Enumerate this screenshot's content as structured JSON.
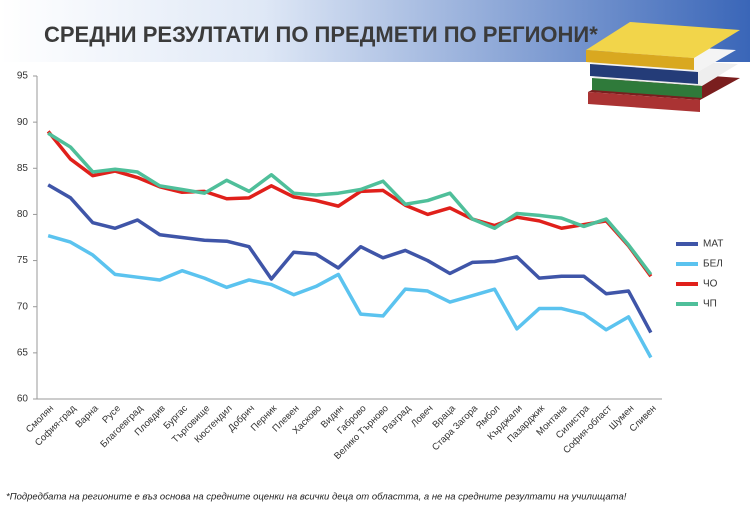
{
  "chart_data": {
    "type": "line",
    "title": "СРЕДНИ РЕЗУЛТАТИ ПО ПРЕДМЕТИ ПО РЕГИОНИ*",
    "footnote": "*Подредбата на регионите е въз основа на средните оценки на всички деца от областта, а не на средните резултати на училищата!",
    "categories": [
      "Смолян",
      "София-град",
      "Варна",
      "Русе",
      "Благоевград",
      "Пловдив",
      "Бургас",
      "Търговище",
      "Кюстендил",
      "Добрич",
      "Перник",
      "Плевен",
      "Хасково",
      "Видин",
      "Габрово",
      "Велико Търново",
      "Разград",
      "Ловеч",
      "Враца",
      "Стара Загора",
      "Ямбол",
      "Кърджали",
      "Пазарджик",
      "Монтана",
      "Силистра",
      "София-област",
      "Шумен",
      "Сливен"
    ],
    "series": [
      {
        "name": "МАТ",
        "color": "#3f55a8",
        "values": [
          83.2,
          81.8,
          79.1,
          78.5,
          79.4,
          77.8,
          77.5,
          77.2,
          77.1,
          76.5,
          73.0,
          75.9,
          75.7,
          74.2,
          76.5,
          75.3,
          76.1,
          75.0,
          73.6,
          74.8,
          74.9,
          75.4,
          73.1,
          73.3,
          73.3,
          71.4,
          71.7,
          67.2
        ]
      },
      {
        "name": "БЕЛ",
        "color": "#5bc3ef",
        "values": [
          77.7,
          77.0,
          75.6,
          73.5,
          73.2,
          72.9,
          73.9,
          73.1,
          72.1,
          72.9,
          72.4,
          71.3,
          72.2,
          73.5,
          69.2,
          69.0,
          71.9,
          71.7,
          70.5,
          71.2,
          71.9,
          67.6,
          69.8,
          69.8,
          69.2,
          67.5,
          68.9,
          64.5
        ]
      },
      {
        "name": "ЧО",
        "color": "#e0201b",
        "values": [
          89.0,
          86.0,
          84.2,
          84.7,
          84.0,
          83.0,
          82.4,
          82.5,
          81.7,
          81.8,
          83.1,
          81.9,
          81.5,
          80.9,
          82.5,
          82.6,
          81.0,
          80.0,
          80.7,
          79.5,
          78.8,
          79.7,
          79.3,
          78.5,
          78.9,
          79.3,
          76.6,
          73.3
        ]
      },
      {
        "name": "ЧП",
        "color": "#4fbf9a",
        "values": [
          88.8,
          87.3,
          84.6,
          84.9,
          84.6,
          83.1,
          82.7,
          82.3,
          83.7,
          82.5,
          84.3,
          82.3,
          82.1,
          82.3,
          82.7,
          83.6,
          81.1,
          81.5,
          82.3,
          79.5,
          78.5,
          80.1,
          79.9,
          79.6,
          78.7,
          79.5,
          76.7,
          73.5
        ]
      }
    ],
    "ylim": [
      60,
      95
    ],
    "yticks": [
      60,
      65,
      70,
      75,
      80,
      85,
      90,
      95
    ],
    "grid": false,
    "legend": "right"
  }
}
